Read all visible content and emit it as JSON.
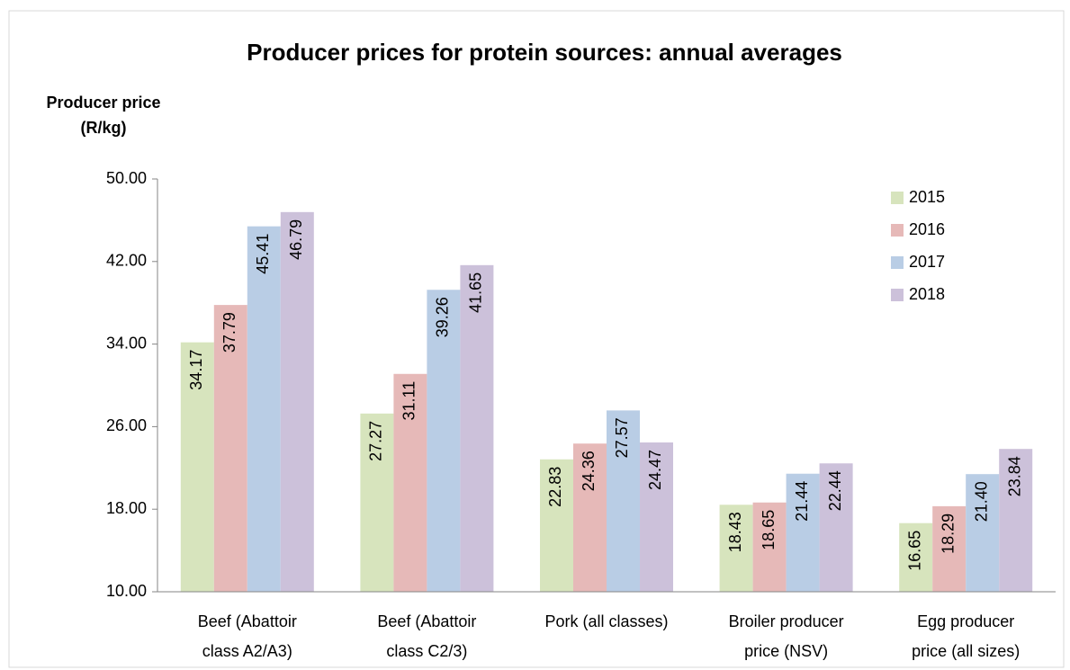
{
  "chart_data": {
    "type": "bar",
    "title": "Producer prices for protein sources: annual averages",
    "y_label": [
      "Producer price",
      "(R/kg)"
    ],
    "categories": [
      [
        "Beef (Abattoir",
        "class A2/A3)"
      ],
      [
        "Beef (Abattoir",
        "class C2/3)"
      ],
      [
        "Pork (all classes)"
      ],
      [
        "Broiler producer",
        "price (NSV)"
      ],
      [
        "Egg producer",
        "price (all sizes)"
      ]
    ],
    "series": [
      {
        "name": "2015",
        "color": "#d7e4bd",
        "values": [
          34.17,
          27.27,
          22.83,
          18.43,
          16.65
        ],
        "value_labels": [
          "34.17",
          "27.27",
          "22.83",
          "18.43",
          "16.65"
        ]
      },
      {
        "name": "2016",
        "color": "#e6b9b8",
        "values": [
          37.79,
          31.11,
          24.36,
          18.65,
          18.29
        ],
        "value_labels": [
          "37.79",
          "31.11",
          "24.36",
          "18.65",
          "18.29"
        ]
      },
      {
        "name": "2017",
        "color": "#b9cde5",
        "values": [
          45.41,
          39.26,
          27.57,
          21.44,
          21.4
        ],
        "value_labels": [
          "45.41",
          "39.26",
          "27.57",
          "21.44",
          "21.40"
        ]
      },
      {
        "name": "2018",
        "color": "#ccc1da",
        "values": [
          46.79,
          41.65,
          24.47,
          22.44,
          23.84
        ],
        "value_labels": [
          "46.79",
          "41.65",
          "24.47",
          "22.44",
          "23.84"
        ]
      }
    ],
    "ylim": [
      10,
      50
    ],
    "yticks": [
      {
        "value": 10,
        "label": "10.00"
      },
      {
        "value": 18,
        "label": "18.00"
      },
      {
        "value": 26,
        "label": "26.00"
      },
      {
        "value": 34,
        "label": "34.00"
      },
      {
        "value": 42,
        "label": "42.00"
      },
      {
        "value": 50,
        "label": "50.00"
      }
    ],
    "grid": false,
    "legend": "upper right"
  }
}
